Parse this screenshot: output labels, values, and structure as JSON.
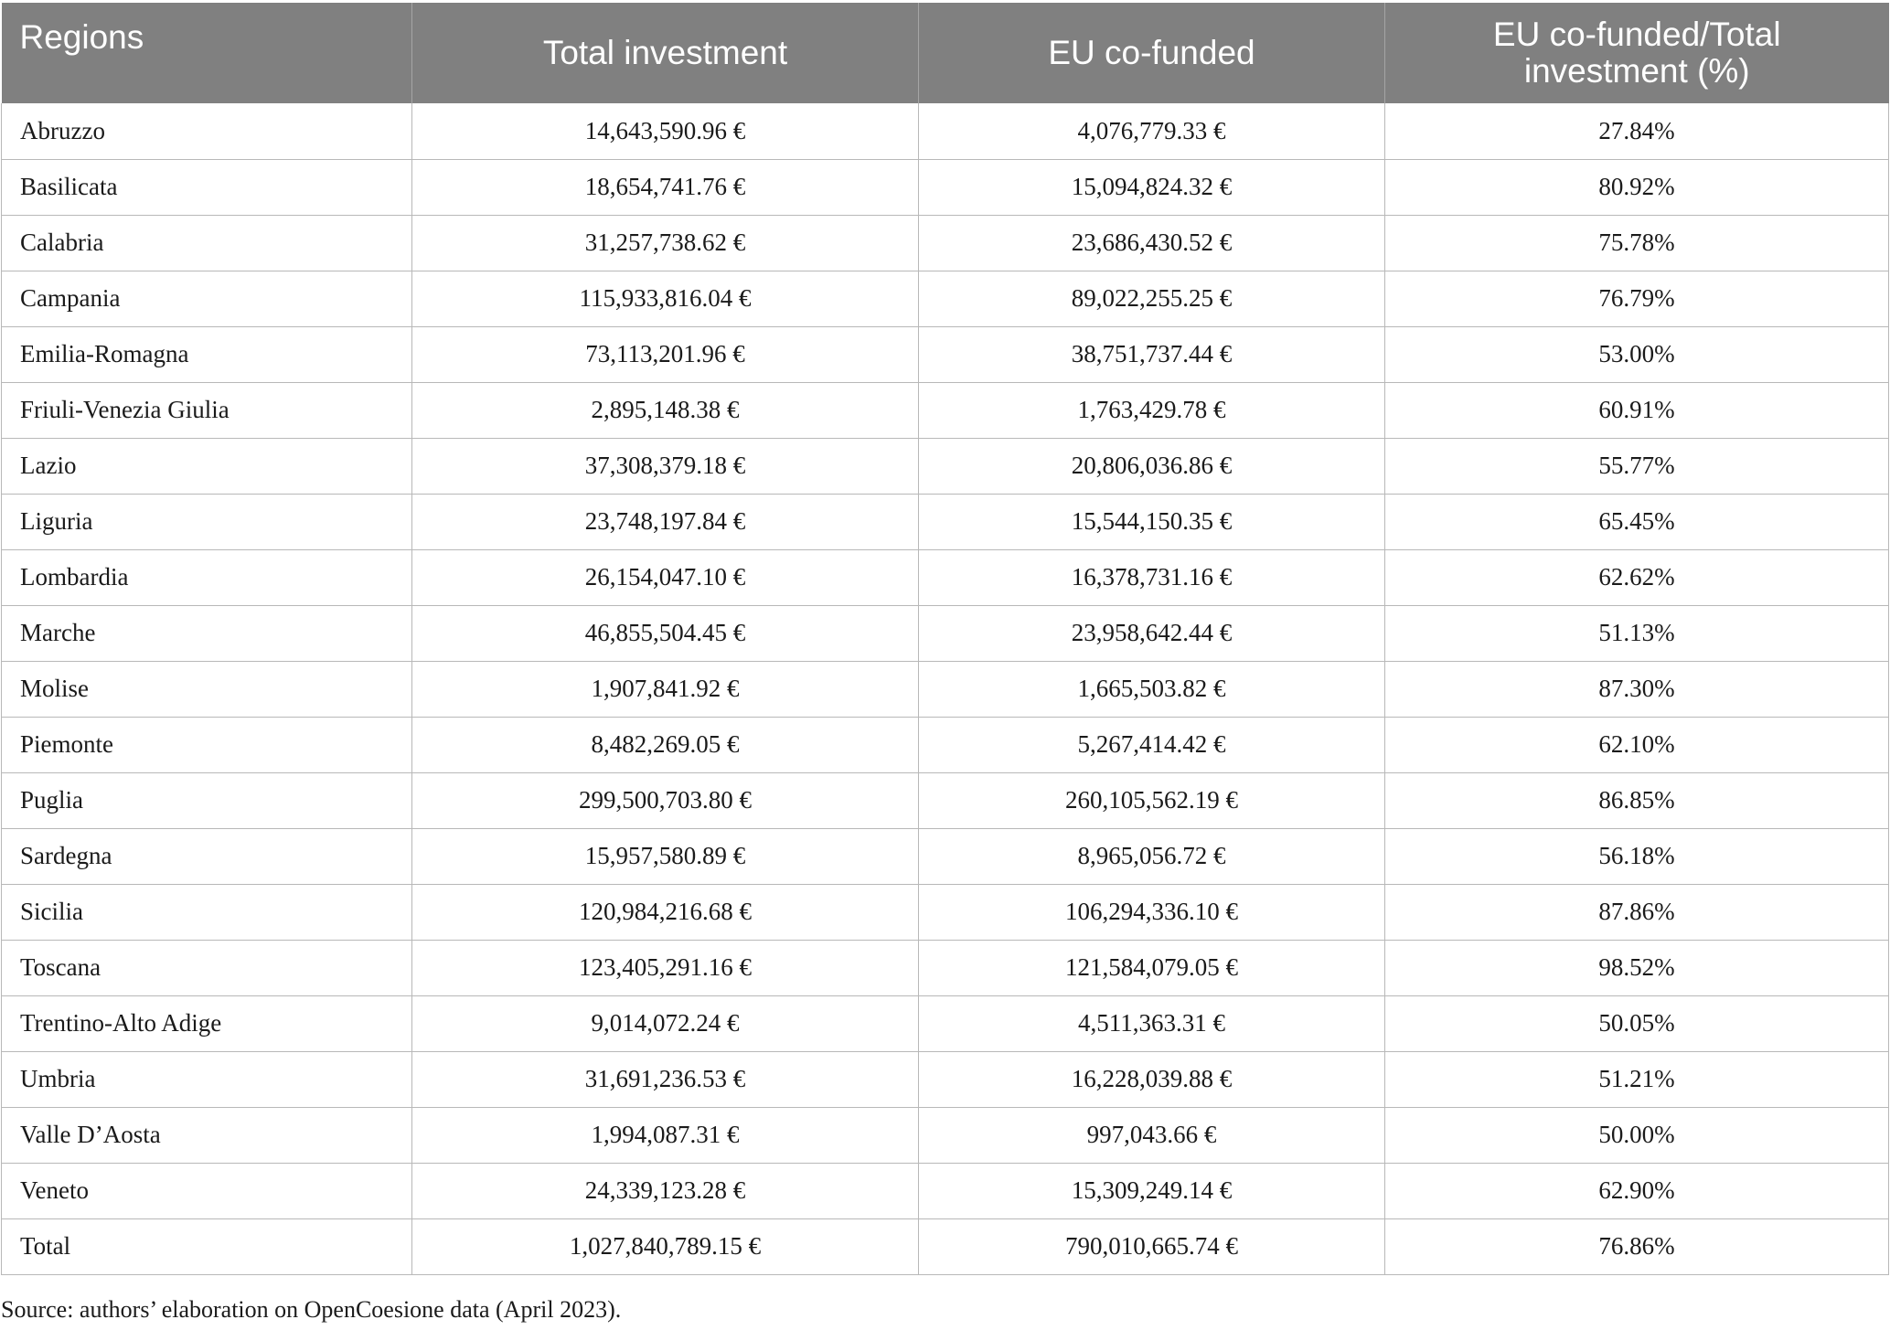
{
  "table": {
    "headers": [
      "Regions",
      "Total investment",
      "EU co-funded",
      "EU co-funded/Total\ninvestment (%)"
    ],
    "header_line1": "EU co-funded/Total",
    "header_line2": "investment (%)",
    "rows": [
      [
        "Abruzzo",
        "14,643,590.96 €",
        "4,076,779.33 €",
        "27.84%"
      ],
      [
        "Basilicata",
        "18,654,741.76 €",
        "15,094,824.32 €",
        "80.92%"
      ],
      [
        "Calabria",
        "31,257,738.62 €",
        "23,686,430.52 €",
        "75.78%"
      ],
      [
        "Campania",
        "115,933,816.04 €",
        "89,022,255.25 €",
        "76.79%"
      ],
      [
        "Emilia-Romagna",
        "73,113,201.96 €",
        "38,751,737.44 €",
        "53.00%"
      ],
      [
        "Friuli-Venezia Giulia",
        "2,895,148.38 €",
        "1,763,429.78 €",
        "60.91%"
      ],
      [
        "Lazio",
        "37,308,379.18 €",
        "20,806,036.86 €",
        "55.77%"
      ],
      [
        "Liguria",
        "23,748,197.84 €",
        "15,544,150.35 €",
        "65.45%"
      ],
      [
        "Lombardia",
        "26,154,047.10 €",
        "16,378,731.16 €",
        "62.62%"
      ],
      [
        "Marche",
        "46,855,504.45 €",
        "23,958,642.44 €",
        "51.13%"
      ],
      [
        "Molise",
        "1,907,841.92 €",
        "1,665,503.82 €",
        "87.30%"
      ],
      [
        "Piemonte",
        "8,482,269.05 €",
        "5,267,414.42 €",
        "62.10%"
      ],
      [
        "Puglia",
        "299,500,703.80 €",
        "260,105,562.19 €",
        "86.85%"
      ],
      [
        "Sardegna",
        "15,957,580.89 €",
        "8,965,056.72 €",
        "56.18%"
      ],
      [
        "Sicilia",
        "120,984,216.68 €",
        "106,294,336.10 €",
        "87.86%"
      ],
      [
        "Toscana",
        "123,405,291.16 €",
        "121,584,079.05 €",
        "98.52%"
      ],
      [
        "Trentino-Alto Adige",
        "9,014,072.24 €",
        "4,511,363.31 €",
        "50.05%"
      ],
      [
        "Umbria",
        "31,691,236.53 €",
        "16,228,039.88 €",
        "51.21%"
      ],
      [
        "Valle D’Aosta",
        "1,994,087.31 €",
        "997,043.66 €",
        "50.00%"
      ],
      [
        "Veneto",
        "24,339,123.28 €",
        "15,309,249.14 €",
        "62.90%"
      ],
      [
        "Total",
        "1,027,840,789.15 €",
        "790,010,665.74 €",
        "76.86%"
      ]
    ]
  },
  "source": "Source: authors’ elaboration on OpenCoesione data (April 2023).",
  "colors": {
    "header_bg": "#808080",
    "header_text": "#ffffff",
    "grid": "#b8b8b8"
  }
}
